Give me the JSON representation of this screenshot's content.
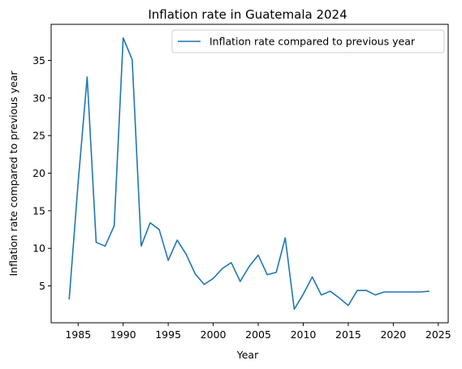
{
  "chart_data": {
    "type": "line",
    "title": "Inflation rate in Guatemala 2024",
    "xlabel": "Year",
    "ylabel": "Inflation rate compared to previous year",
    "xlim": [
      1982,
      2026.1
    ],
    "ylim": [
      0.1,
      39.8
    ],
    "xticks": [
      1985,
      1990,
      1995,
      2000,
      2005,
      2010,
      2015,
      2020,
      2025
    ],
    "yticks": [
      5,
      10,
      15,
      20,
      25,
      30,
      35
    ],
    "grid": false,
    "legend_position": "top-right",
    "series": [
      {
        "name": "Inflation rate compared to previous year",
        "color": "#1f77b4",
        "x": [
          1984,
          1985,
          1986,
          1987,
          1988,
          1989,
          1990,
          1991,
          1992,
          1993,
          1994,
          1995,
          1996,
          1997,
          1998,
          1999,
          2000,
          2001,
          2002,
          2003,
          2004,
          2005,
          2006,
          2007,
          2008,
          2009,
          2010,
          2011,
          2012,
          2013,
          2014,
          2015,
          2016,
          2017,
          2018,
          2019,
          2020,
          2021,
          2022,
          2023,
          2024
        ],
        "values": [
          3.2,
          18.8,
          32.8,
          10.8,
          10.3,
          13.0,
          38.0,
          35.1,
          10.3,
          13.4,
          12.5,
          8.4,
          11.1,
          9.2,
          6.6,
          5.2,
          6.0,
          7.3,
          8.1,
          5.6,
          7.6,
          9.1,
          6.5,
          6.8,
          11.4,
          1.9,
          3.9,
          6.2,
          3.8,
          4.3,
          3.4,
          2.4,
          4.4,
          4.4,
          3.8,
          4.2,
          4.2,
          4.2,
          4.2,
          4.2,
          4.3
        ]
      }
    ]
  }
}
